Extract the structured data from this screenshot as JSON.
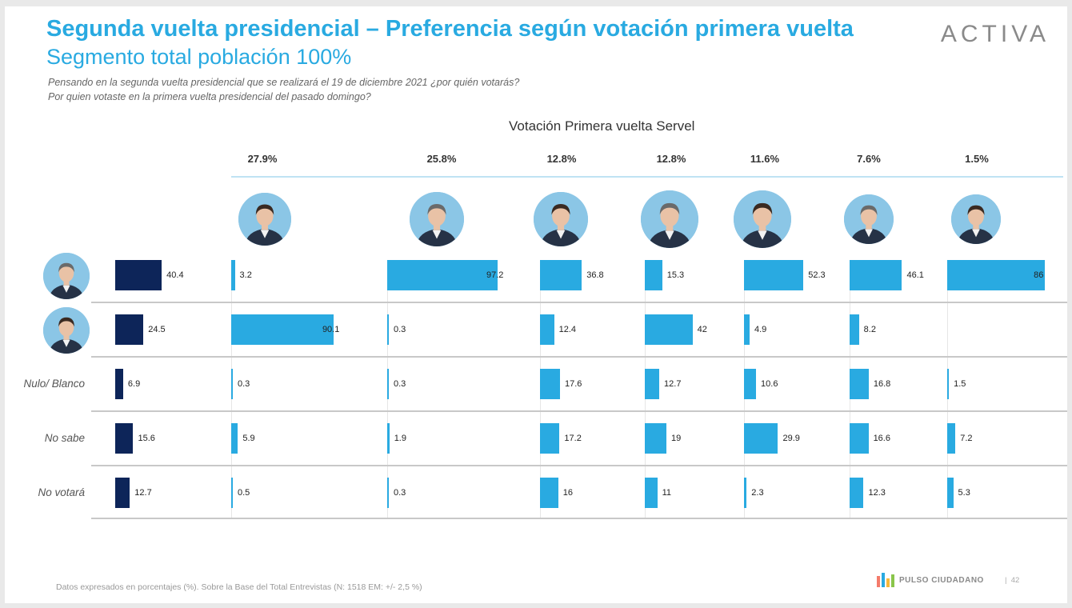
{
  "header": {
    "title": "Segunda vuelta presidencial – Preferencia según votación primera vuelta",
    "subtitle": "Segmento total población 100%",
    "question1": "Pensando en la segunda vuelta presidencial que se realizará el 19 de diciembre 2021 ¿por quién votarás?",
    "question2": "Por quien votaste en la primera vuelta presidencial del pasado domingo?",
    "brand": "ACTIVA"
  },
  "chart_data": {
    "type": "bar",
    "orientation": "horizontal",
    "group_title": "Votación Primera vuelta Servel",
    "columns": [
      {
        "id": "c1",
        "pct": "27.9%"
      },
      {
        "id": "c2",
        "pct": "25.8%"
      },
      {
        "id": "c3",
        "pct": "12.8%"
      },
      {
        "id": "c4",
        "pct": "12.8%"
      },
      {
        "id": "c5",
        "pct": "11.6%"
      },
      {
        "id": "c6",
        "pct": "7.6%"
      },
      {
        "id": "c7",
        "pct": "1.5%"
      }
    ],
    "rows": [
      {
        "id": "r1",
        "label": "",
        "total": 40.4,
        "values": [
          3.2,
          97.2,
          36.8,
          15.3,
          52.3,
          46.1,
          86
        ]
      },
      {
        "id": "r2",
        "label": "",
        "total": 24.5,
        "values": [
          90.1,
          0.3,
          12.4,
          42,
          4.9,
          8.2,
          null
        ]
      },
      {
        "id": "r3",
        "label": "Nulo/ Blanco",
        "total": 6.9,
        "values": [
          0.3,
          0.3,
          17.6,
          12.7,
          10.6,
          16.8,
          1.5
        ]
      },
      {
        "id": "r4",
        "label": "No sabe",
        "total": 15.6,
        "values": [
          5.9,
          1.9,
          17.2,
          19,
          29.9,
          16.6,
          7.2
        ]
      },
      {
        "id": "r5",
        "label": "No votará",
        "total": 12.7,
        "values": [
          0.5,
          0.3,
          16,
          11,
          2.3,
          12.3,
          5.3
        ]
      }
    ],
    "colors": {
      "total": "#0d2559",
      "bars": "#29aae1"
    }
  },
  "footer": {
    "note": "Datos expresados en porcentajes (%). Sobre la Base del Total Entrevistas (N: 1518 EM: +/- 2,5 %)",
    "logo": "PULSO CIUDADANO",
    "page": "42"
  }
}
